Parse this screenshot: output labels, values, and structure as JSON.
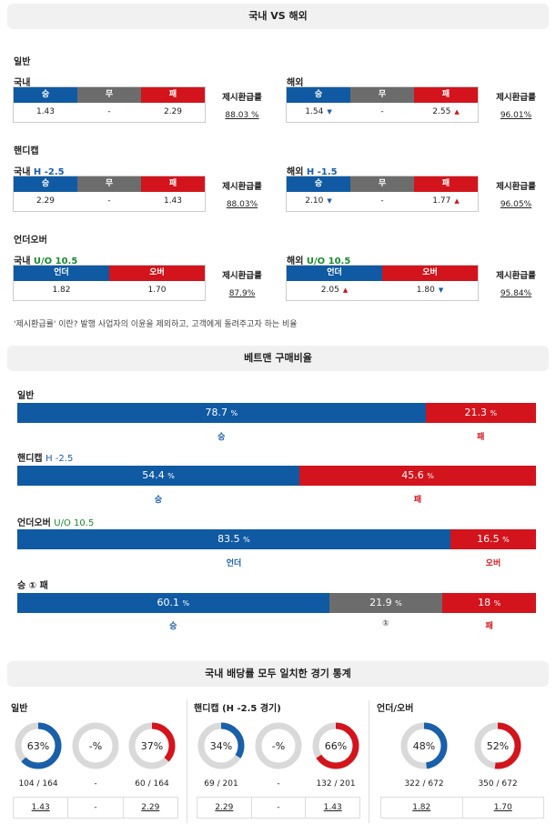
{
  "header1": "국내 VS 해외",
  "general": {
    "section": "일반",
    "domestic": {
      "label": "국내",
      "h": [
        "승",
        "무",
        "패"
      ],
      "v": [
        "1.43",
        "-",
        "2.29"
      ],
      "pay_label": "제시환급률",
      "pay": "88.03 %"
    },
    "overseas": {
      "label": "해외",
      "h": [
        "승",
        "무",
        "패"
      ],
      "v": [
        "1.54",
        "-",
        "2.55"
      ],
      "pay_label": "제시환급률",
      "pay": "96.01%"
    }
  },
  "handicap": {
    "section": "핸디캡",
    "domestic": {
      "label": "국내",
      "line": "H -2.5",
      "h": [
        "승",
        "무",
        "패"
      ],
      "v": [
        "2.29",
        "-",
        "1.43"
      ],
      "pay_label": "제시환급률",
      "pay": "88.03%"
    },
    "overseas": {
      "label": "해외",
      "line": "H -1.5",
      "h": [
        "승",
        "무",
        "패"
      ],
      "v": [
        "2.10",
        "-",
        "1.77"
      ],
      "pay_label": "제시환급률",
      "pay": "96.05%"
    }
  },
  "underover": {
    "section": "언더오버",
    "domestic": {
      "label": "국내",
      "line": "U/O 10.5",
      "h": [
        "언더",
        "오버"
      ],
      "v": [
        "1.82",
        "1.70"
      ],
      "pay_label": "제시환급률",
      "pay": "87.9%"
    },
    "overseas": {
      "label": "해외",
      "line": "U/O 10.5",
      "h": [
        "언더",
        "오버"
      ],
      "v": [
        "2.05",
        "1.80"
      ],
      "pay_label": "제시환급률",
      "pay": "95.84%"
    }
  },
  "note": "'제시환급률' 이란? 발행 사업자의 이윤을 제외하고, 고객에게 돌려주고자 하는 비율",
  "header2": "베트맨 구매비율",
  "ratios": {
    "general": {
      "label": "일반",
      "line": "",
      "a": 78.7,
      "b": 21.3,
      "a_text": "78.7",
      "b_text": "21.3",
      "pct": "%",
      "a_lab": "승",
      "b_lab": "패"
    },
    "handicap": {
      "label": "핸디캡",
      "line": "H -2.5",
      "a": 54.4,
      "b": 45.6,
      "a_text": "54.4",
      "b_text": "45.6",
      "pct": "%",
      "a_lab": "승",
      "b_lab": "패"
    },
    "underover": {
      "label": "언더오버",
      "line": "U/O 10.5",
      "a": 83.5,
      "b": 16.5,
      "a_text": "83.5",
      "b_text": "16.5",
      "pct": "%",
      "a_lab": "언더",
      "b_lab": "오버"
    },
    "wdl": {
      "label": "승 ① 패",
      "a": 60.1,
      "c": 21.9,
      "b": 18,
      "a_text": "60.1",
      "c_text": "21.9",
      "b_text": "18",
      "pct": "%",
      "a_lab": "승",
      "c_lab": "①",
      "b_lab": "패"
    }
  },
  "header3": "국내 배당률 모두 일치한 경기 통계",
  "stats": {
    "general": {
      "label": "일반",
      "donuts": [
        {
          "pct": 63,
          "text": "63%",
          "count": "104 / 164",
          "odd": "1.43",
          "color": "#1a5faa"
        },
        {
          "pct": 0,
          "text": "-%",
          "count": "-",
          "odd": "-",
          "color": "#6c6c6c"
        },
        {
          "pct": 37,
          "text": "37%",
          "count": "60 / 164",
          "odd": "2.29",
          "color": "#d3141c"
        }
      ]
    },
    "handicap": {
      "label": "핸디캡 (H -2.5 경기)",
      "donuts": [
        {
          "pct": 34,
          "text": "34%",
          "count": "69 / 201",
          "odd": "2.29",
          "color": "#1a5faa"
        },
        {
          "pct": 0,
          "text": "-%",
          "count": "-",
          "odd": "-",
          "color": "#6c6c6c"
        },
        {
          "pct": 66,
          "text": "66%",
          "count": "132 / 201",
          "odd": "1.43",
          "color": "#d3141c"
        }
      ]
    },
    "underover": {
      "label": "언더/오버",
      "donuts": [
        {
          "pct": 48,
          "text": "48%",
          "count": "322 / 672",
          "odd": "1.82",
          "color": "#1a5faa"
        },
        {
          "pct": 52,
          "text": "52%",
          "count": "350 / 672",
          "odd": "1.70",
          "color": "#d3141c"
        }
      ]
    }
  }
}
